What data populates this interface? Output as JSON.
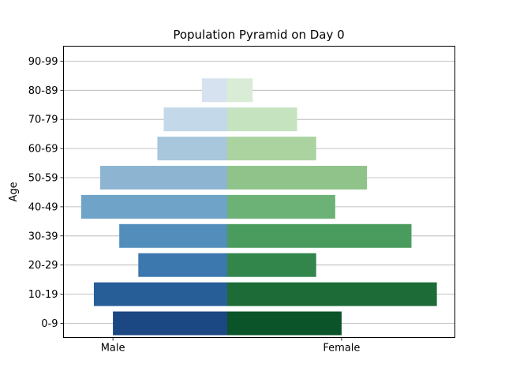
{
  "chart_data": {
    "type": "bar",
    "orientation": "horizontal",
    "layout": "population-pyramid",
    "title": "Population Pyramid on Day 0",
    "ylabel": "Age",
    "xlabel": "",
    "xlim": [
      -18,
      18
    ],
    "x_tick_labels": [
      "Male",
      "Female"
    ],
    "x_tick_values": [
      -9,
      9
    ],
    "categories": [
      "0-9",
      "10-19",
      "20-29",
      "30-39",
      "40-49",
      "50-59",
      "60-69",
      "70-79",
      "80-89",
      "90-99"
    ],
    "series": [
      {
        "name": "Male",
        "values": [
          9,
          10.5,
          7,
          8.5,
          11.5,
          10,
          5.5,
          5,
          2,
          0
        ],
        "colors": [
          "#1b4782",
          "#285e98",
          "#3c77ae",
          "#528dbc",
          "#6fa3c8",
          "#8db5d2",
          "#a8c6dc",
          "#c3d8e9",
          "#d6e2ef",
          "#e6eef7"
        ]
      },
      {
        "name": "Female",
        "values": [
          9,
          16.5,
          7,
          14.5,
          8.5,
          11,
          7,
          5.5,
          2,
          0
        ],
        "colors": [
          "#0b5429",
          "#1d6c38",
          "#32864c",
          "#4a9b5e",
          "#6cb276",
          "#8fc38a",
          "#abd3a0",
          "#c6e3c0",
          "#d9ecd5",
          "#ebf5e8"
        ]
      }
    ],
    "grid": {
      "y": true,
      "x": false
    },
    "legend": "none"
  }
}
